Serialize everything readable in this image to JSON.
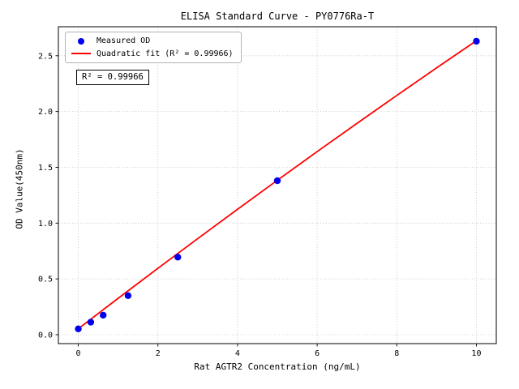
{
  "chart_data": {
    "type": "scatter",
    "title": "ELISA Standard Curve - PY0776Ra-T",
    "xlabel": "Rat AGTR2 Concentration (ng/mL)",
    "ylabel": "OD Value(450nm)",
    "xlim": [
      -0.5,
      10.5
    ],
    "ylim": [
      -0.08,
      2.76
    ],
    "xtick_labels": [
      "0",
      "2",
      "4",
      "6",
      "8",
      "10"
    ],
    "xtick_values": [
      0,
      2,
      4,
      6,
      8,
      10
    ],
    "ytick_labels": [
      "0.0",
      "0.5",
      "1.0",
      "1.5",
      "2.0",
      "2.5"
    ],
    "ytick_values": [
      0,
      0.5,
      1.0,
      1.5,
      2.0,
      2.5
    ],
    "grid": true,
    "grid_color": "#bdbdbd",
    "axes_color": "#000000",
    "annotation": "R² = 0.99966",
    "legend": {
      "position": "upper left",
      "entries": [
        {
          "label": "Measured OD",
          "marker": "dot",
          "color": "#0000ee"
        },
        {
          "label": "Quadratic fit (R² = 0.99966)",
          "marker": "line",
          "color": "#ff0000"
        }
      ]
    },
    "series": [
      {
        "name": "Measured OD",
        "type": "scatter",
        "color": "#0000ee",
        "marker_radius": 4.2,
        "x": [
          0,
          0.313,
          0.625,
          1.25,
          2.5,
          5,
          10
        ],
        "y": [
          0.052,
          0.112,
          0.175,
          0.35,
          0.695,
          1.38,
          2.63
        ]
      },
      {
        "name": "Quadratic fit",
        "type": "line",
        "color": "#ff0000",
        "line_width": 1.8,
        "x": [
          0,
          1,
          2,
          3,
          4,
          5,
          6,
          7,
          8,
          9,
          10
        ],
        "y": [
          0.053,
          0.326,
          0.595,
          0.861,
          1.124,
          1.384,
          1.641,
          1.894,
          2.144,
          2.391,
          2.635
        ]
      }
    ]
  }
}
